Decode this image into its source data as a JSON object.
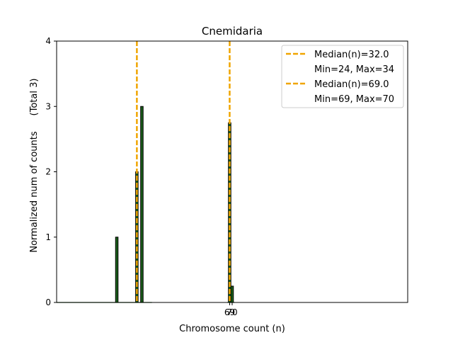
{
  "chart_data": {
    "type": "bar",
    "title": "Cnemidaria",
    "xlabel": "Chromosome count (n)",
    "ylabel": "Normalized num of counts",
    "ylabel_total": "(Total 3)",
    "ylim": [
      0,
      4
    ],
    "xlim": [
      0,
      140
    ],
    "yticks": [
      0,
      1,
      2,
      3,
      4
    ],
    "xtick_labels": [
      {
        "value": 69,
        "label": "69"
      },
      {
        "value": 70,
        "label": "70"
      }
    ],
    "bar_width": 1.0,
    "bars": [
      {
        "x": 24,
        "value": 1.0,
        "color": "#1a5e1a"
      },
      {
        "x": 32,
        "value": 2.0,
        "color": "#1a5e1a"
      },
      {
        "x": 34,
        "value": 3.0,
        "color": "#1a5e1a"
      },
      {
        "x": 69,
        "value": 2.75,
        "color": "#1a5e1a"
      },
      {
        "x": 70,
        "value": 0.25,
        "color": "#1a5e1a"
      }
    ],
    "baseline_spans": [
      {
        "from": 0,
        "to": 38
      },
      {
        "from": 68,
        "to": 71
      }
    ],
    "median_lines": [
      {
        "x": 32.0,
        "color": "#f0a500"
      },
      {
        "x": 69.0,
        "color": "#f0a500"
      }
    ],
    "legend": [
      {
        "label": "Median(n)=32.0",
        "color": "#f0a500",
        "range": "Min=24, Max=34"
      },
      {
        "label": "Median(n)=69.0",
        "color": "#f0a500",
        "range": "Min=69, Max=70"
      }
    ],
    "legend_position": "top-right"
  }
}
